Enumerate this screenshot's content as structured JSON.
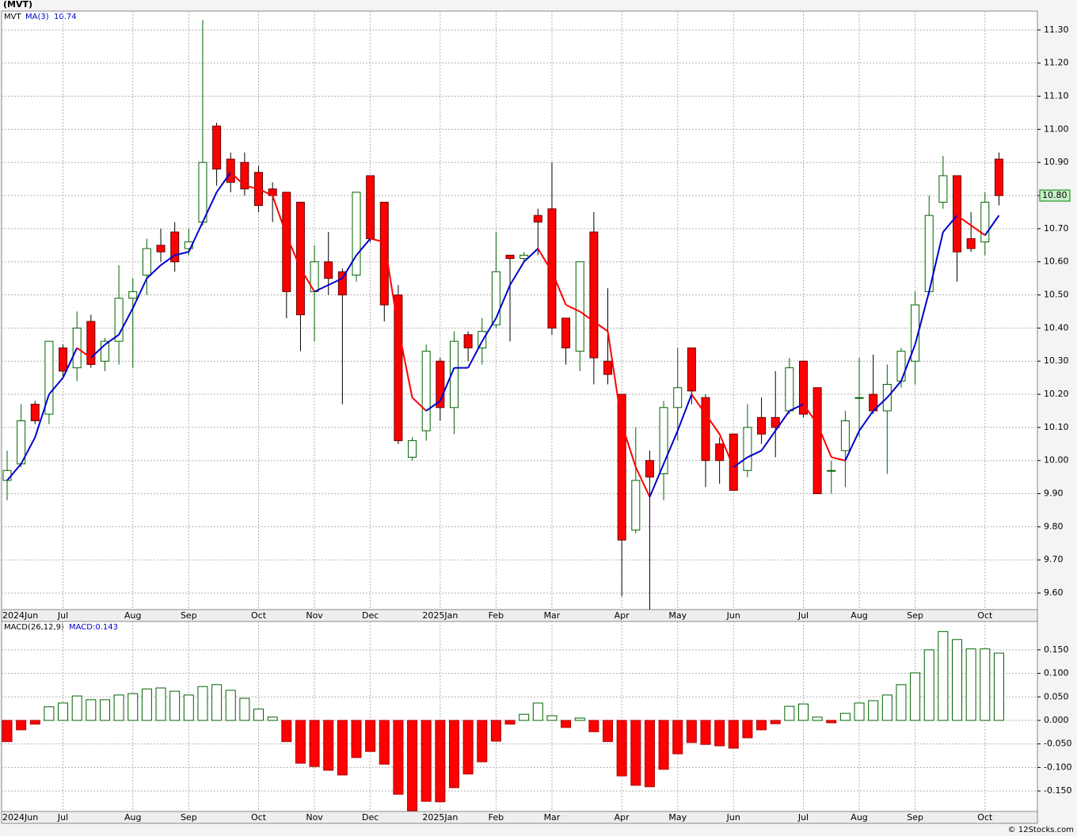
{
  "credit": "© 12Stocks.com",
  "chart_data": [
    {
      "type": "candlestick",
      "title": "(MVT)",
      "series_label": "MVT",
      "categories": [
        "2024Jun",
        null,
        null,
        null,
        "Jul",
        null,
        null,
        null,
        null,
        "Aug",
        null,
        null,
        null,
        "Sep",
        null,
        null,
        null,
        null,
        "Oct",
        null,
        null,
        null,
        "Nov",
        null,
        null,
        null,
        "Dec",
        null,
        null,
        null,
        null,
        "2025Jan",
        null,
        null,
        null,
        "Feb",
        null,
        null,
        null,
        "Mar",
        null,
        null,
        null,
        null,
        "Apr",
        null,
        null,
        null,
        "May",
        null,
        null,
        null,
        "Jun",
        null,
        null,
        null,
        null,
        "Jul",
        null,
        null,
        null,
        "Aug",
        null,
        null,
        null,
        "Sep",
        null,
        null,
        null,
        null,
        "Oct",
        null
      ],
      "open": [
        9.94,
        9.99,
        10.17,
        10.14,
        10.34,
        10.28,
        10.42,
        10.3,
        10.36,
        10.49,
        10.56,
        10.65,
        10.69,
        10.64,
        10.72,
        11.01,
        10.91,
        10.9,
        10.87,
        10.82,
        10.81,
        10.78,
        10.51,
        10.6,
        10.57,
        10.56,
        10.86,
        10.78,
        10.5,
        10.01,
        10.09,
        10.3,
        10.16,
        10.38,
        10.34,
        10.41,
        10.62,
        10.61,
        10.74,
        10.76,
        10.43,
        10.33,
        10.69,
        10.3,
        10.2,
        9.79,
        10.0,
        9.96,
        10.16,
        10.34,
        10.19,
        10.05,
        10.08,
        9.97,
        10.13,
        10.13,
        10.15,
        10.3,
        10.22,
        9.97,
        10.03,
        10.19,
        10.2,
        10.15,
        10.24,
        10.3,
        10.51,
        10.78,
        10.86,
        10.67,
        10.66,
        10.91
      ],
      "high": [
        10.03,
        10.17,
        10.18,
        10.36,
        10.35,
        10.45,
        10.44,
        10.37,
        10.59,
        10.55,
        10.67,
        10.7,
        10.72,
        10.7,
        11.33,
        11.02,
        10.93,
        10.93,
        10.89,
        10.84,
        10.81,
        10.78,
        10.65,
        10.69,
        10.58,
        10.81,
        10.86,
        10.78,
        10.53,
        10.07,
        10.35,
        10.31,
        10.39,
        10.39,
        10.43,
        10.69,
        10.62,
        10.63,
        10.76,
        10.9,
        10.43,
        10.6,
        10.75,
        10.52,
        10.2,
        10.1,
        10.03,
        10.18,
        10.34,
        10.34,
        10.2,
        10.07,
        10.08,
        10.17,
        10.19,
        10.27,
        10.31,
        10.3,
        10.22,
        10.0,
        10.15,
        10.31,
        10.32,
        10.29,
        10.34,
        10.51,
        10.8,
        10.92,
        10.86,
        10.75,
        10.81,
        10.93
      ],
      "low": [
        9.88,
        9.98,
        10.11,
        10.11,
        10.25,
        10.24,
        10.28,
        10.27,
        10.29,
        10.28,
        10.5,
        10.6,
        10.57,
        10.62,
        10.71,
        10.83,
        10.81,
        10.8,
        10.75,
        10.72,
        10.43,
        10.33,
        10.36,
        10.5,
        10.17,
        10.54,
        10.66,
        10.42,
        10.05,
        10.0,
        10.06,
        10.12,
        10.08,
        10.3,
        10.29,
        10.4,
        10.36,
        10.6,
        10.62,
        10.38,
        10.29,
        10.27,
        10.23,
        10.23,
        9.59,
        9.78,
        9.55,
        9.88,
        10.06,
        10.17,
        9.92,
        9.93,
        9.91,
        9.95,
        10.05,
        10.01,
        10.14,
        10.13,
        9.9,
        9.9,
        9.92,
        10.07,
        10.14,
        9.96,
        10.22,
        10.23,
        10.5,
        10.76,
        10.54,
        10.63,
        10.62,
        10.77
      ],
      "close": [
        9.97,
        10.12,
        10.12,
        10.36,
        10.27,
        10.4,
        10.29,
        10.36,
        10.49,
        10.51,
        10.64,
        10.63,
        10.6,
        10.66,
        10.9,
        10.88,
        10.84,
        10.82,
        10.77,
        10.8,
        10.51,
        10.44,
        10.6,
        10.55,
        10.5,
        10.81,
        10.67,
        10.47,
        10.06,
        10.06,
        10.33,
        10.16,
        10.36,
        10.34,
        10.39,
        10.57,
        10.61,
        10.62,
        10.72,
        10.4,
        10.34,
        10.6,
        10.31,
        10.26,
        9.76,
        9.94,
        9.95,
        10.16,
        10.22,
        10.21,
        10.0,
        10.0,
        9.91,
        10.1,
        10.08,
        10.1,
        10.28,
        10.14,
        9.9,
        9.97,
        10.12,
        10.19,
        10.15,
        10.23,
        10.33,
        10.47,
        10.74,
        10.86,
        10.63,
        10.64,
        10.78,
        10.8
      ],
      "up_color": "#006400",
      "down_color": "#ff0000",
      "ma": {
        "name": "MA(3)",
        "legend_value": 10.74,
        "up_color": "#0000cc",
        "down_color": "#ff0000",
        "values": [
          9.94,
          9.99,
          10.07,
          10.2,
          10.25,
          10.34,
          10.31,
          10.35,
          10.38,
          10.46,
          10.55,
          10.59,
          10.62,
          10.63,
          10.72,
          10.81,
          10.87,
          10.83,
          10.82,
          10.8,
          10.68,
          10.58,
          10.51,
          10.53,
          10.55,
          10.62,
          10.67,
          10.66,
          10.4,
          10.19,
          10.15,
          10.18,
          10.28,
          10.28,
          10.36,
          10.43,
          10.53,
          10.6,
          10.64,
          10.57,
          10.47,
          10.45,
          10.42,
          10.39,
          10.11,
          9.98,
          9.89,
          9.99,
          10.09,
          10.2,
          10.14,
          10.08,
          9.98,
          10.01,
          10.03,
          10.09,
          10.15,
          10.17,
          10.11,
          10.01,
          10.0,
          10.09,
          10.15,
          10.19,
          10.24,
          10.35,
          10.51,
          10.69,
          10.74,
          10.71,
          10.68,
          10.74
        ]
      },
      "last_price": {
        "value": 10.8,
        "label": "10.80"
      },
      "ylim": [
        9.55,
        11.357
      ],
      "yticks": [
        {
          "value": 9.6,
          "label": "9.60"
        },
        {
          "value": 9.7,
          "label": "9.70"
        },
        {
          "value": 9.8,
          "label": "9.80"
        },
        {
          "value": 9.9,
          "label": "9.90"
        },
        {
          "value": 10.0,
          "label": "10.00"
        },
        {
          "value": 10.1,
          "label": "10.10"
        },
        {
          "value": 10.2,
          "label": "10.20"
        },
        {
          "value": 10.3,
          "label": "10.30"
        },
        {
          "value": 10.4,
          "label": "10.40"
        },
        {
          "value": 10.5,
          "label": "10.50"
        },
        {
          "value": 10.6,
          "label": "10.60"
        },
        {
          "value": 10.7,
          "label": "10.70"
        },
        {
          "value": 10.8,
          "label": "10.80"
        },
        {
          "value": 10.9,
          "label": "10.90"
        },
        {
          "value": 11.0,
          "label": "11.00"
        },
        {
          "value": 11.1,
          "label": "11.10"
        },
        {
          "value": 11.2,
          "label": "11.20"
        },
        {
          "value": 11.3,
          "label": "11.30"
        }
      ],
      "grid": true
    },
    {
      "type": "bar",
      "title": "MACD(26,12,9)",
      "value_label": {
        "value": 0.143,
        "label": "MACD:0.143"
      },
      "categories": [
        "2024Jun",
        null,
        null,
        null,
        "Jul",
        null,
        null,
        null,
        null,
        "Aug",
        null,
        null,
        null,
        "Sep",
        null,
        null,
        null,
        null,
        "Oct",
        null,
        null,
        null,
        "Nov",
        null,
        null,
        null,
        "Dec",
        null,
        null,
        null,
        null,
        "2025Jan",
        null,
        null,
        null,
        "Feb",
        null,
        null,
        null,
        "Mar",
        null,
        null,
        null,
        null,
        "Apr",
        null,
        null,
        null,
        "May",
        null,
        null,
        null,
        "Jun",
        null,
        null,
        null,
        null,
        "Jul",
        null,
        null,
        null,
        "Aug",
        null,
        null,
        null,
        "Sep",
        null,
        null,
        null,
        null,
        "Oct",
        null
      ],
      "values": [
        -0.045,
        -0.02,
        -0.008,
        0.029,
        0.037,
        0.052,
        0.044,
        0.044,
        0.054,
        0.057,
        0.067,
        0.069,
        0.062,
        0.054,
        0.072,
        0.076,
        0.064,
        0.047,
        0.024,
        0.007,
        -0.045,
        -0.091,
        -0.098,
        -0.106,
        -0.116,
        -0.079,
        -0.066,
        -0.093,
        -0.157,
        -0.192,
        -0.172,
        -0.173,
        -0.143,
        -0.114,
        -0.088,
        -0.044,
        -0.008,
        0.013,
        0.037,
        0.01,
        -0.015,
        0.005,
        -0.024,
        -0.045,
        -0.118,
        -0.138,
        -0.141,
        -0.104,
        -0.071,
        -0.047,
        -0.051,
        -0.054,
        -0.059,
        -0.037,
        -0.02,
        -0.007,
        0.03,
        0.035,
        0.007,
        -0.005,
        0.015,
        0.037,
        0.042,
        0.054,
        0.076,
        0.101,
        0.15,
        0.189,
        0.172,
        0.152,
        0.152,
        0.143
      ],
      "up_color": "#006400",
      "down_color": "#ff0000",
      "ylim": [
        -0.1936,
        0.2104
      ],
      "yticks": [
        {
          "value": -0.15,
          "label": "-0.150"
        },
        {
          "value": -0.1,
          "label": "-0.100"
        },
        {
          "value": -0.05,
          "label": "-0.050"
        },
        {
          "value": 0,
          "label": "0.000"
        },
        {
          "value": 0.05,
          "label": "0.050"
        },
        {
          "value": 0.1,
          "label": "0.100"
        },
        {
          "value": 0.15,
          "label": "0.150"
        }
      ],
      "grid": true
    }
  ]
}
